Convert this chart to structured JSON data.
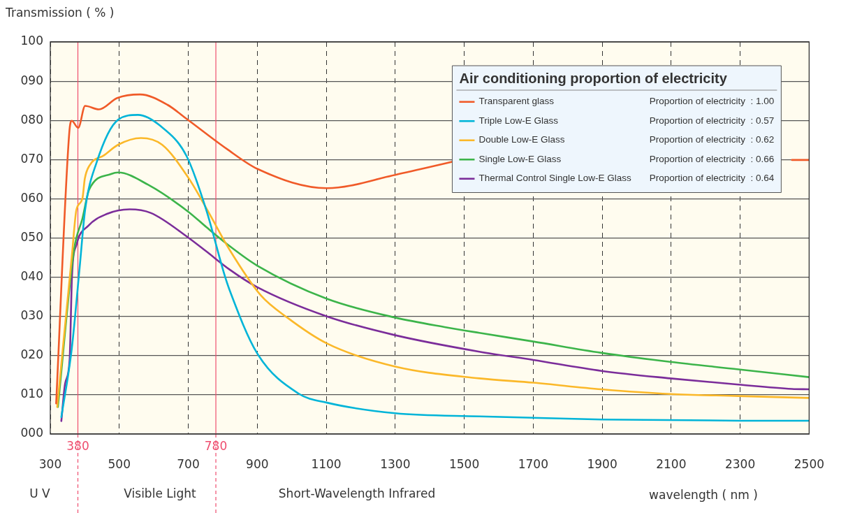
{
  "chart_data": {
    "type": "line",
    "ylabel": "Transmission ( % )",
    "xlabel": "wavelength ( nm )",
    "legend_title": "Air conditioning proportion of electricity",
    "legend": "top right",
    "grid": true,
    "xlim": [
      300,
      2500
    ],
    "xticks": [
      300,
      500,
      700,
      900,
      1100,
      1300,
      1500,
      1700,
      1900,
      2100,
      2300,
      2500
    ],
    "ylim": [
      0,
      100
    ],
    "yticks": [
      {
        "value": 0,
        "label": "000"
      },
      {
        "value": 10,
        "label": "010"
      },
      {
        "value": 20,
        "label": "020"
      },
      {
        "value": 30,
        "label": "030"
      },
      {
        "value": 40,
        "label": "040"
      },
      {
        "value": 50,
        "label": "050"
      },
      {
        "value": 60,
        "label": "060"
      },
      {
        "value": 70,
        "label": "070"
      },
      {
        "value": 80,
        "label": "080"
      },
      {
        "value": 90,
        "label": "090"
      },
      100
    ],
    "ref_lines": [
      {
        "axis": "x",
        "value": 380,
        "label": "380",
        "color": "#ee4d6e"
      },
      {
        "axis": "x",
        "value": 780,
        "label": "780",
        "color": "#ee4d6e"
      }
    ],
    "annotations": [
      "U V",
      "Visible Light",
      "Short-Wavelength Infrared",
      "Proportion of electricity  : 1.00",
      "Proportion of electricity  : 0.57",
      "Proportion of electricity  : 0.62",
      "Proportion of electricity  : 0.66",
      "Proportion of electricity  : 0.64"
    ],
    "series": [
      {
        "name": "Transparent glass",
        "color": "#f05a28",
        "x": [
          317,
          355,
          362,
          381,
          401,
          441,
          494,
          560,
          639,
          695,
          812,
          901,
          1102,
          1300,
          1469,
          1500,
          2450,
          2500
        ],
        "values": [
          7.8,
          76.8,
          79.9,
          78.1,
          83.7,
          82.8,
          85.7,
          86.6,
          84.0,
          80.4,
          72.7,
          67.6,
          62.7,
          66.1,
          69.5,
          null,
          69.9,
          69.9
        ]
      },
      {
        "name": "Triple Low-E Glass",
        "color": "#00b4d8",
        "x": [
          332,
          362,
          385,
          401,
          434,
          497,
          554,
          619,
          695,
          752,
          805,
          819,
          899,
          1020,
          1102,
          1300,
          1544,
          1898,
          2300,
          2500
        ],
        "values": [
          4.3,
          21.6,
          42.4,
          57.2,
          69.2,
          80.2,
          81.4,
          78.6,
          70.9,
          57.2,
          40.6,
          36.9,
          20.7,
          10.3,
          8.0,
          5.3,
          4.5,
          3.7,
          3.4,
          3.4
        ]
      },
      {
        "name": "Double Low-E Glass",
        "color": "#fbb829",
        "x": [
          320,
          363,
          376,
          393,
          400,
          413,
          456,
          497,
          563,
          624,
          700,
          758,
          819,
          910,
          987,
          1102,
          1300,
          1544,
          1700,
          1898,
          2097,
          2295,
          2500
        ],
        "values": [
          6.9,
          45.9,
          57.3,
          60.0,
          65.1,
          68.4,
          71.1,
          73.8,
          75.5,
          73.8,
          65.4,
          56.7,
          47.1,
          35.4,
          29.7,
          23.1,
          17.2,
          14.2,
          13.1,
          11.4,
          10.2,
          9.7,
          9.2
        ]
      },
      {
        "name": "Single Low-E Glass",
        "color": "#3cb44a",
        "x": [
          322,
          369,
          393,
          413,
          476,
          497,
          583,
          700,
          752,
          819,
          899,
          1102,
          1300,
          1449,
          1544,
          1700,
          1898,
          2097,
          2295,
          2500
        ],
        "values": [
          6.9,
          47.1,
          54.9,
          62.4,
          66.3,
          66.7,
          63.6,
          56.7,
          52.8,
          48.0,
          43.0,
          34.5,
          29.7,
          27.2,
          25.8,
          23.6,
          20.7,
          18.4,
          16.5,
          14.5
        ]
      },
      {
        "name": "Thermal Control Single Low-E Glass",
        "color": "#7b2d9a",
        "x": [
          332,
          343,
          356,
          363,
          376,
          410,
          463,
          530,
          591,
          700,
          752,
          819,
          899,
          1102,
          1300,
          1544,
          1700,
          1898,
          2097,
          2295,
          2450,
          2500
        ],
        "values": [
          3.3,
          12.9,
          18.9,
          40.5,
          48.3,
          53.1,
          56.1,
          57.3,
          56.4,
          50.1,
          46.6,
          42.0,
          37.5,
          30.0,
          25.2,
          21.0,
          18.9,
          16.1,
          14.2,
          12.6,
          11.5,
          11.4
        ]
      }
    ]
  }
}
